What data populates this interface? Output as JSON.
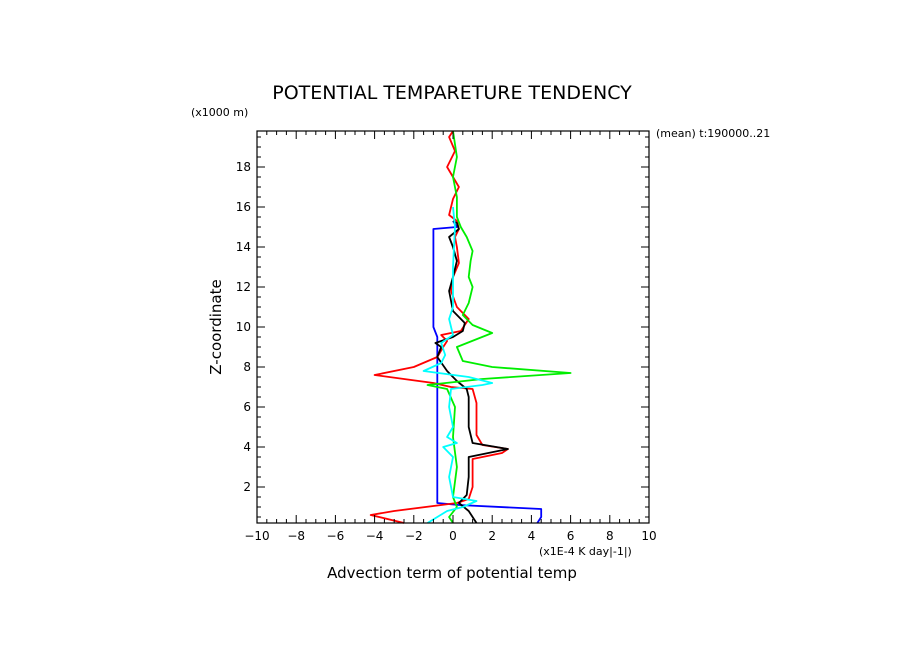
{
  "chart_data": {
    "type": "line",
    "title": "POTENTIAL TEMPARETURE TENDENCY",
    "annotation": "(mean) t:190000..21",
    "xlabel": "Advection term of potential temp",
    "xunit": "(x1E-4 K day|-1|)",
    "ylabel": "Z-coordinate",
    "yunit": "(x1000 m)",
    "xlim": [
      -10,
      10
    ],
    "ylim": [
      0.2,
      19.8
    ],
    "xticks": [
      -10,
      -8,
      -6,
      -4,
      -2,
      0,
      2,
      4,
      6,
      8,
      10
    ],
    "yticks": [
      2,
      4,
      6,
      8,
      10,
      12,
      14,
      16,
      18
    ],
    "grid": false,
    "colors": {
      "red": "#ff0000",
      "black": "#000000",
      "green": "#00ee00",
      "cyan": "#00ffff",
      "blue": "#0000ff",
      "frame": "#000000"
    },
    "series": [
      {
        "color": "#0000ff",
        "points": [
          [
            4.3,
            0.2
          ],
          [
            4.5,
            0.5
          ],
          [
            4.5,
            0.9
          ],
          [
            0.3,
            1.1
          ],
          [
            -0.8,
            1.2
          ],
          [
            -0.8,
            3
          ],
          [
            -0.8,
            6
          ],
          [
            -0.8,
            8
          ],
          [
            -0.8,
            9.5
          ],
          [
            -1.0,
            10
          ],
          [
            -1.0,
            12
          ],
          [
            -1.0,
            14
          ],
          [
            -1.0,
            14.9
          ],
          [
            0.2,
            15.0
          ],
          [
            0.0,
            15.3
          ]
        ]
      },
      {
        "color": "#ff0000",
        "points": [
          [
            -2.5,
            0.2
          ],
          [
            -4.2,
            0.6
          ],
          [
            -3.0,
            0.8
          ],
          [
            0.2,
            1.2
          ],
          [
            0.8,
            1.4
          ],
          [
            1.0,
            2
          ],
          [
            1.0,
            3
          ],
          [
            1.0,
            3.4
          ],
          [
            2.5,
            3.7
          ],
          [
            2.8,
            3.9
          ],
          [
            1.5,
            4.1
          ],
          [
            1.2,
            4.6
          ],
          [
            1.2,
            5.5
          ],
          [
            1.2,
            6.2
          ],
          [
            1.0,
            6.9
          ],
          [
            -0.1,
            7.0
          ],
          [
            -1.0,
            7.2
          ],
          [
            -4.0,
            7.6
          ],
          [
            -2.0,
            8.0
          ],
          [
            -0.8,
            8.5
          ],
          [
            -0.5,
            9.0
          ],
          [
            -0.3,
            9.3
          ],
          [
            -0.6,
            9.6
          ],
          [
            0.4,
            9.8
          ],
          [
            0.8,
            10.4
          ],
          [
            0.2,
            11
          ],
          [
            -0.1,
            11.8
          ],
          [
            0.0,
            12.5
          ],
          [
            0.3,
            13.2
          ],
          [
            0.2,
            14
          ],
          [
            0.1,
            14.5
          ],
          [
            0.3,
            14.9
          ],
          [
            0.2,
            15.3
          ],
          [
            -0.2,
            15.6
          ],
          [
            0.0,
            16.4
          ],
          [
            0.3,
            17
          ],
          [
            -0.3,
            18
          ],
          [
            0.1,
            18.8
          ],
          [
            -0.2,
            19.5
          ],
          [
            0.0,
            19.8
          ]
        ]
      },
      {
        "color": "#000000",
        "points": [
          [
            1.2,
            0.2
          ],
          [
            0.8,
            0.8
          ],
          [
            0.3,
            1.2
          ],
          [
            0.7,
            1.6
          ],
          [
            0.8,
            2.5
          ],
          [
            0.8,
            3.5
          ],
          [
            2.8,
            3.9
          ],
          [
            1.0,
            4.2
          ],
          [
            0.8,
            5
          ],
          [
            0.8,
            6.5
          ],
          [
            0.7,
            6.9
          ],
          [
            0.2,
            7.3
          ],
          [
            -0.3,
            7.8
          ],
          [
            -0.8,
            8.5
          ],
          [
            -0.6,
            9.0
          ],
          [
            -0.9,
            9.2
          ],
          [
            0.0,
            9.5
          ],
          [
            0.5,
            9.8
          ],
          [
            0.6,
            10.2
          ],
          [
            0.0,
            10.8
          ],
          [
            -0.2,
            11.8
          ],
          [
            0.0,
            12.5
          ],
          [
            0.2,
            13.3
          ],
          [
            0.0,
            14.0
          ],
          [
            -0.2,
            14.5
          ],
          [
            0.3,
            14.9
          ],
          [
            0.2,
            15.2
          ],
          [
            0.0,
            15.3
          ]
        ]
      },
      {
        "color": "#00ee00",
        "points": [
          [
            0.0,
            0.2
          ],
          [
            -0.2,
            0.5
          ],
          [
            0.2,
            1.0
          ],
          [
            0.0,
            1.5
          ],
          [
            0.2,
            3
          ],
          [
            0.0,
            4.5
          ],
          [
            0.1,
            6.0
          ],
          [
            -0.3,
            6.9
          ],
          [
            -1.3,
            7.1
          ],
          [
            1.5,
            7.4
          ],
          [
            6.0,
            7.7
          ],
          [
            2.0,
            8.0
          ],
          [
            0.5,
            8.3
          ],
          [
            0.2,
            9.0
          ],
          [
            2.0,
            9.7
          ],
          [
            1.0,
            10.1
          ],
          [
            0.5,
            10.6
          ],
          [
            0.8,
            11.2
          ],
          [
            1.0,
            12.0
          ],
          [
            0.8,
            12.5
          ],
          [
            0.9,
            13.3
          ],
          [
            1.0,
            13.8
          ],
          [
            0.7,
            14.5
          ],
          [
            0.4,
            15.0
          ],
          [
            0.2,
            15.5
          ],
          [
            0.2,
            16.5
          ],
          [
            0.0,
            17.5
          ],
          [
            0.2,
            18.5
          ],
          [
            0.0,
            19.8
          ]
        ]
      },
      {
        "color": "#00ffff",
        "points": [
          [
            -1.3,
            0.2
          ],
          [
            -0.8,
            0.5
          ],
          [
            -0.3,
            0.8
          ],
          [
            0.5,
            1.0
          ],
          [
            1.2,
            1.3
          ],
          [
            0.0,
            1.5
          ],
          [
            -0.2,
            2.5
          ],
          [
            0.0,
            3.5
          ],
          [
            -0.5,
            4.0
          ],
          [
            0.2,
            4.2
          ],
          [
            -0.3,
            4.5
          ],
          [
            0.0,
            5.0
          ],
          [
            -0.2,
            6.0
          ],
          [
            -0.1,
            6.9
          ],
          [
            1.5,
            7.1
          ],
          [
            2.0,
            7.2
          ],
          [
            0.8,
            7.5
          ],
          [
            -1.5,
            7.8
          ],
          [
            -0.6,
            8.2
          ],
          [
            -0.4,
            8.6
          ],
          [
            -0.6,
            9.2
          ],
          [
            0.0,
            9.6
          ],
          [
            -0.2,
            10.4
          ],
          [
            0.0,
            11
          ],
          [
            0.0,
            13
          ],
          [
            0.1,
            15
          ],
          [
            0.0,
            16
          ]
        ]
      }
    ]
  }
}
